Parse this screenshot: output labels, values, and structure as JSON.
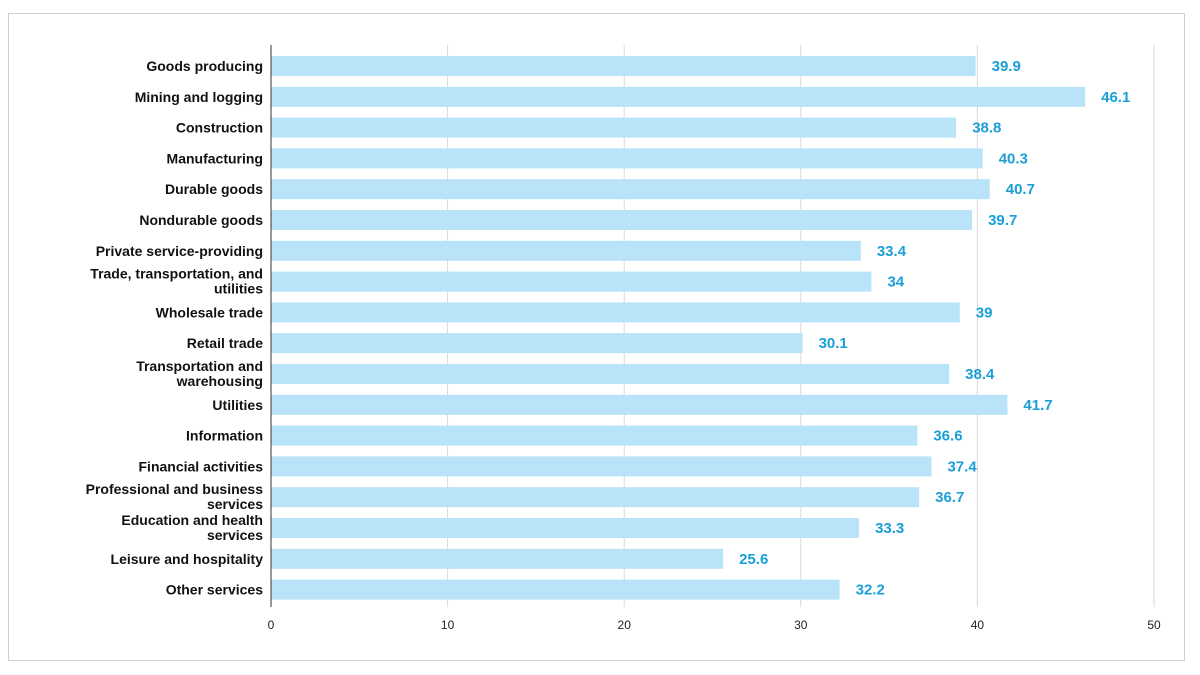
{
  "chart_data": {
    "type": "bar",
    "orientation": "horizontal",
    "title": "",
    "xlabel": "",
    "ylabel": "",
    "xlim": [
      0,
      50
    ],
    "xticks": [
      0,
      10,
      20,
      30,
      40,
      50
    ],
    "grid": true,
    "legend": "none",
    "bar_color": "#b8e3f8",
    "label_color": "#1a9fd6",
    "categories": [
      [
        "Goods producing"
      ],
      [
        "Mining and logging"
      ],
      [
        "Construction"
      ],
      [
        "Manufacturing"
      ],
      [
        "Durable goods"
      ],
      [
        "Nondurable goods"
      ],
      [
        "Private service-providing"
      ],
      [
        "Trade, transportation, and",
        "utilities"
      ],
      [
        "Wholesale trade"
      ],
      [
        "Retail trade"
      ],
      [
        "Transportation and",
        "warehousing"
      ],
      [
        "Utilities"
      ],
      [
        "Information"
      ],
      [
        "Financial activities"
      ],
      [
        "Professional and business",
        "services"
      ],
      [
        "Education and health",
        "services"
      ],
      [
        "Leisure and hospitality"
      ],
      [
        "Other services"
      ]
    ],
    "values": [
      39.9,
      46.1,
      38.8,
      40.3,
      40.7,
      39.7,
      33.4,
      34,
      39,
      30.1,
      38.4,
      41.7,
      36.6,
      37.4,
      36.7,
      33.3,
      25.6,
      32.2
    ]
  }
}
